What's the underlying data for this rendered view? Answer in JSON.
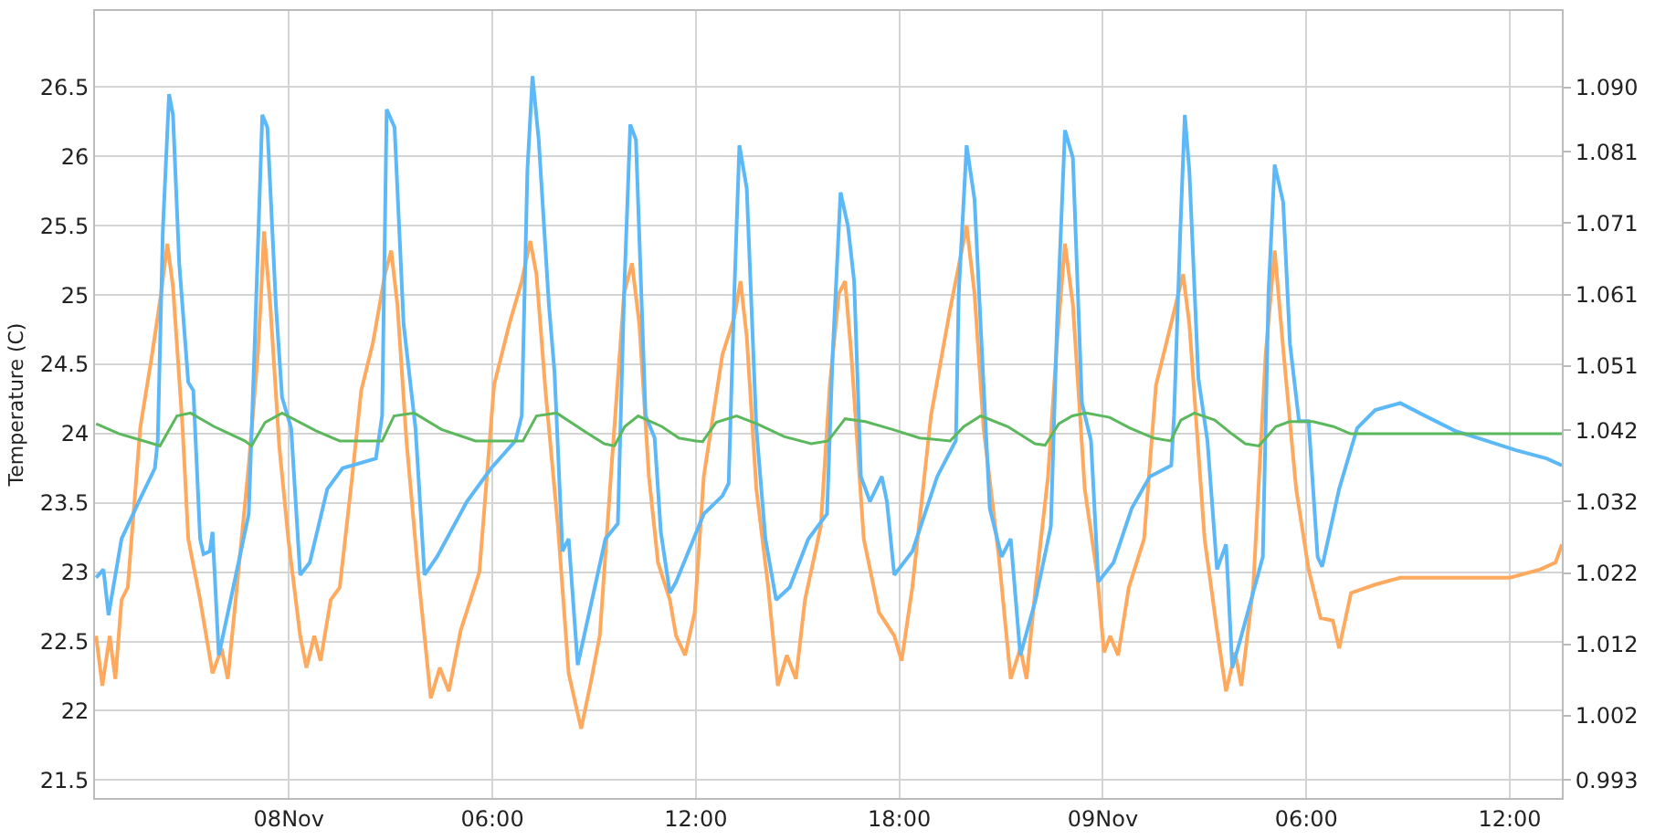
{
  "chart_data": {
    "type": "line",
    "ylabel": "Temperature (C)",
    "xlim": [
      "--11-07T18:17",
      "--11-09T13:32"
    ],
    "xticks": [
      {
        "value": "--11-08T00:00",
        "label": "08Nov"
      },
      {
        "value": "--11-08T06:00",
        "label": "06:00"
      },
      {
        "value": "--11-08T12:00",
        "label": "12:00"
      },
      {
        "value": "--11-08T18:00",
        "label": "18:00"
      },
      {
        "value": "--11-09T00:00",
        "label": "09Nov"
      },
      {
        "value": "--11-09T06:00",
        "label": "06:00"
      },
      {
        "value": "--11-09T12:00",
        "label": "12:00"
      }
    ],
    "ylim": [
      21.37,
      27.05
    ],
    "yticks": [
      21.5,
      22,
      22.5,
      23,
      23.5,
      24,
      24.5,
      25,
      25.5,
      26,
      26.5
    ],
    "y2lim": [
      0.9905,
      1.1007
    ],
    "y2ticks": [
      0.993,
      1.002,
      1.012,
      1.022,
      1.032,
      1.042,
      1.051,
      1.061,
      1.071,
      1.081,
      {
        "value": 1.09,
        "label": "1.090"
      }
    ],
    "grid": true,
    "marker": "none",
    "line_style": "solid",
    "series": [
      {
        "color": "#ffa95e",
        "x": [
          "--11-07T18:19",
          "--11-07T18:30",
          "--11-07T18:43",
          "--11-07T18:53",
          "--11-07T19:04",
          "--11-07T19:15",
          "--11-07T19:37",
          "--11-07T19:58",
          "--11-07T20:14",
          "--11-07T20:25",
          "--11-07T20:35",
          "--11-07T20:52",
          "--11-07T21:02",
          "--11-07T21:23",
          "--11-07T21:45",
          "--11-07T22:01",
          "--11-07T22:12",
          "--11-07T22:28",
          "--11-07T22:49",
          "--11-07T23:05",
          "--11-07T23:11",
          "--11-07T23:16",
          "--11-07T23:27",
          "--11-07T23:43",
          "--11-07T23:59",
          "--11-08T00:20",
          "--11-08T00:31",
          "--11-08T00:45",
          "--11-08T00:56",
          "--11-08T01:14",
          "--11-08T01:30",
          "--11-08T01:52",
          "--11-08T02:08",
          "--11-08T02:29",
          "--11-08T02:50",
          "--11-08T03:01",
          "--11-08T03:12",
          "--11-08T03:28",
          "--11-08T03:49",
          "--11-08T04:11",
          "--11-08T04:27",
          "--11-08T04:43",
          "--11-08T05:04",
          "--11-08T05:37",
          "--11-08T06:03",
          "--11-08T06:30",
          "--11-08T06:52",
          "--11-08T07:07",
          "--11-08T07:18",
          "--11-08T07:34",
          "--11-08T07:56",
          "--11-08T08:15",
          "--11-08T08:37",
          "--11-08T08:53",
          "--11-08T09:10",
          "--11-08T09:31",
          "--11-08T09:53",
          "--11-08T10:07",
          "--11-08T10:20",
          "--11-08T10:37",
          "--11-08T10:53",
          "--11-08T11:14",
          "--11-08T11:25",
          "--11-08T11:41",
          "--11-08T11:58",
          "--11-08T12:14",
          "--11-08T12:47",
          "--11-08T13:08",
          "--11-08T13:19",
          "--11-08T13:30",
          "--11-08T13:47",
          "--11-08T14:08",
          "--11-08T14:25",
          "--11-08T14:41",
          "--11-08T14:57",
          "--11-08T15:13",
          "--11-08T15:41",
          "--11-08T15:57",
          "--11-08T16:13",
          "--11-08T16:24",
          "--11-08T16:35",
          "--11-08T16:57",
          "--11-08T17:24",
          "--11-08T17:51",
          "--11-08T18:04",
          "--11-08T18:23",
          "--11-08T18:56",
          "--11-08T19:29",
          "--11-08T19:59",
          "--11-08T20:13",
          "--11-08T20:29",
          "--11-08T20:56",
          "--11-08T21:17",
          "--11-08T21:34",
          "--11-08T21:45",
          "--11-08T22:01",
          "--11-08T22:23",
          "--11-08T22:39",
          "--11-08T22:53",
          "--11-08T23:07",
          "--11-08T23:28",
          "--11-08T23:50",
          "--11-09T00:02",
          "--11-09T00:13",
          "--11-09T00:27",
          "--11-09T00:46",
          "--11-09T01:13",
          "--11-09T01:34",
          "--11-09T02:06",
          "--11-09T02:22",
          "--11-09T02:33",
          "--11-09T03:00",
          "--11-09T03:22",
          "--11-09T03:38",
          "--11-09T03:54",
          "--11-09T04:05",
          "--11-09T04:26",
          "--11-09T04:48",
          "--11-09T05:04",
          "--11-09T05:20",
          "--11-09T05:42",
          "--11-09T06:04",
          "--11-09T06:25",
          "--11-09T06:47",
          "--11-09T06:58",
          "--11-09T07:19",
          "--11-09T08:02",
          "--11-09T08:46",
          "--11-09T10:12",
          "--11-09T12:00",
          "--11-09T12:54",
          "--11-09T13:21",
          "--11-09T13:32"
        ],
        "values": [
          22.54,
          22.18,
          22.54,
          22.23,
          22.8,
          22.89,
          24.04,
          24.57,
          25.01,
          25.37,
          25.06,
          24.04,
          23.24,
          22.8,
          22.27,
          22.45,
          22.23,
          22.89,
          23.77,
          24.57,
          25.01,
          25.46,
          24.93,
          23.91,
          23.24,
          22.54,
          22.31,
          22.54,
          22.36,
          22.8,
          22.89,
          23.69,
          24.31,
          24.66,
          25.15,
          25.32,
          24.93,
          23.95,
          22.98,
          22.09,
          22.31,
          22.14,
          22.58,
          23.0,
          24.35,
          24.79,
          25.1,
          25.39,
          25.15,
          24.31,
          23.33,
          22.27,
          21.87,
          22.18,
          22.54,
          23.77,
          25.01,
          25.23,
          24.79,
          23.69,
          23.07,
          22.8,
          22.54,
          22.4,
          22.71,
          23.69,
          24.57,
          24.84,
          25.1,
          24.7,
          23.6,
          22.89,
          22.18,
          22.4,
          22.23,
          22.8,
          23.33,
          24.35,
          25.01,
          25.1,
          24.57,
          23.24,
          22.71,
          22.54,
          22.36,
          22.89,
          24.13,
          24.88,
          25.5,
          25.01,
          24.04,
          23.11,
          22.23,
          22.45,
          22.23,
          22.89,
          23.69,
          24.66,
          25.37,
          24.93,
          23.6,
          22.98,
          22.42,
          22.54,
          22.4,
          22.89,
          23.24,
          24.35,
          24.88,
          25.15,
          24.79,
          23.24,
          22.58,
          22.14,
          22.42,
          22.18,
          22.89,
          24.57,
          25.32,
          24.57,
          23.6,
          23.02,
          22.67,
          22.65,
          22.45,
          22.85,
          22.91,
          22.96,
          22.96,
          22.96,
          23.02,
          23.07,
          23.2
        ]
      },
      {
        "color": "#5cb8f7",
        "x": [
          "--11-07T18:19",
          "--11-07T18:32",
          "--11-07T18:41",
          "--11-07T19:04",
          "--11-07T19:37",
          "--11-07T20:03",
          "--11-07T20:08",
          "--11-07T20:17",
          "--11-07T20:28",
          "--11-07T20:35",
          "--11-07T20:46",
          "--11-07T21:02",
          "--11-07T21:11",
          "--11-07T21:23",
          "--11-07T21:29",
          "--11-07T21:40",
          "--11-07T21:45",
          "--11-07T21:56",
          "--11-07T22:17",
          "--11-07T22:49",
          "--11-07T23:00",
          "--11-07T23:13",
          "--11-07T23:22",
          "--11-07T23:37",
          "--11-07T23:48",
          "--11-08T00:04",
          "--11-08T00:20",
          "--11-08T00:37",
          "--11-08T01:08",
          "--11-08T01:35",
          "--11-08T02:34",
          "--11-08T02:45",
          "--11-08T02:53",
          "--11-08T03:07",
          "--11-08T03:23",
          "--11-08T03:44",
          "--11-08T04:00",
          "--11-08T04:22",
          "--11-08T05:15",
          "--11-08T05:58",
          "--11-08T06:41",
          "--11-08T06:52",
          "--11-08T07:02",
          "--11-08T07:11",
          "--11-08T07:22",
          "--11-08T07:40",
          "--11-08T07:50",
          "--11-08T08:04",
          "--11-08T08:15",
          "--11-08T08:31",
          "--11-08T09:20",
          "--11-08T09:42",
          "--11-08T09:53",
          "--11-08T10:04",
          "--11-08T10:14",
          "--11-08T10:31",
          "--11-08T10:47",
          "--11-08T10:58",
          "--11-08T11:14",
          "--11-08T11:25",
          "--11-08T12:14",
          "--11-08T12:47",
          "--11-08T12:58",
          "--11-08T13:08",
          "--11-08T13:17",
          "--11-08T13:30",
          "--11-08T13:47",
          "--11-08T14:03",
          "--11-08T14:22",
          "--11-08T14:46",
          "--11-08T15:19",
          "--11-08T15:52",
          "--11-08T16:02",
          "--11-08T16:16",
          "--11-08T16:29",
          "--11-08T16:40",
          "--11-08T16:52",
          "--11-08T17:08",
          "--11-08T17:29",
          "--11-08T17:38",
          "--11-08T17:51",
          "--11-08T18:23",
          "--11-08T19:07",
          "--11-08T19:40",
          "--11-08T19:45",
          "--11-08T19:59",
          "--11-08T20:13",
          "--11-08T20:29",
          "--11-08T20:40",
          "--11-08T21:01",
          "--11-08T21:17",
          "--11-08T21:34",
          "--11-08T22:01",
          "--11-08T22:28",
          "--11-08T22:39",
          "--11-08T22:53",
          "--11-08T23:07",
          "--11-08T23:23",
          "--11-08T23:39",
          "--11-08T23:52",
          "--11-09T00:19",
          "--11-09T00:51",
          "--11-09T01:23",
          "--11-09T02:01",
          "--11-09T02:06",
          "--11-09T02:17",
          "--11-09T02:25",
          "--11-09T02:33",
          "--11-09T02:49",
          "--11-09T03:05",
          "--11-09T03:22",
          "--11-09T03:38",
          "--11-09T03:49",
          "--11-09T04:05",
          "--11-09T04:43",
          "--11-09T04:53",
          "--11-09T05:04",
          "--11-09T05:19",
          "--11-09T05:31",
          "--11-09T05:47",
          "--11-09T06:04",
          "--11-09T06:20",
          "--11-09T06:28",
          "--11-09T06:58",
          "--11-09T07:30",
          "--11-09T08:02",
          "--11-09T08:46",
          "--11-09T09:29",
          "--11-09T10:23",
          "--11-09T11:17",
          "--11-09T12:11",
          "--11-09T13:05",
          "--11-09T13:32"
        ],
        "values": [
          22.96,
          23.02,
          22.69,
          23.24,
          23.53,
          23.75,
          23.95,
          25.46,
          26.45,
          26.3,
          25.23,
          24.37,
          24.31,
          23.24,
          23.13,
          23.15,
          23.29,
          22.4,
          22.8,
          23.42,
          24.7,
          26.3,
          26.21,
          24.93,
          24.26,
          24.04,
          22.98,
          23.07,
          23.6,
          23.75,
          23.82,
          24.13,
          26.34,
          26.21,
          24.79,
          24.04,
          22.98,
          23.11,
          23.51,
          23.75,
          23.95,
          24.13,
          25.9,
          26.58,
          26.12,
          24.93,
          24.44,
          23.15,
          23.24,
          22.33,
          23.24,
          23.35,
          25.01,
          26.23,
          26.12,
          24.13,
          23.97,
          23.29,
          22.85,
          22.93,
          23.42,
          23.55,
          23.64,
          25.01,
          26.08,
          25.77,
          24.04,
          23.24,
          22.8,
          22.89,
          23.24,
          23.42,
          24.57,
          25.74,
          25.5,
          25.1,
          23.69,
          23.51,
          23.69,
          23.51,
          22.98,
          23.15,
          23.69,
          23.95,
          25.01,
          26.08,
          25.69,
          24.35,
          23.46,
          23.11,
          23.24,
          22.4,
          22.8,
          23.33,
          24.79,
          26.19,
          25.99,
          24.22,
          23.95,
          22.93,
          23.07,
          23.46,
          23.69,
          23.77,
          24.13,
          25.46,
          26.3,
          25.9,
          24.4,
          23.95,
          23.02,
          23.2,
          22.31,
          22.54,
          23.11,
          25.01,
          25.94,
          25.67,
          24.65,
          24.09,
          24.09,
          23.11,
          23.04,
          23.6,
          24.04,
          24.17,
          24.22,
          24.13,
          24.02,
          23.95,
          23.88,
          23.82,
          23.77
        ]
      },
      {
        "color": "#5cb85c",
        "axis": "y2",
        "x": [
          "--11-07T18:19",
          "--11-07T19:00",
          "--11-07T20:00",
          "--11-07T20:12",
          "--11-07T20:42",
          "--11-07T21:06",
          "--11-07T21:48",
          "--11-07T22:42",
          "--11-07T22:54",
          "--11-07T23:18",
          "--11-07T23:48",
          "--11-08T00:48",
          "--11-08T01:30",
          "--11-08T02:45",
          "--11-08T03:06",
          "--11-08T03:42",
          "--11-08T04:30",
          "--11-08T05:30",
          "--11-08T06:54",
          "--11-08T07:18",
          "--11-08T07:54",
          "--11-08T08:42",
          "--11-08T09:18",
          "--11-08T09:36",
          "--11-08T09:54",
          "--11-08T10:18",
          "--11-08T11:00",
          "--11-08T11:30",
          "--11-08T12:00",
          "--11-08T12:12",
          "--11-08T12:36",
          "--11-08T13:12",
          "--11-08T13:48",
          "--11-08T14:36",
          "--11-08T15:24",
          "--11-08T15:54",
          "--11-08T16:24",
          "--11-08T17:00",
          "--11-08T17:48",
          "--11-08T18:36",
          "--11-08T19:30",
          "--11-08T19:54",
          "--11-08T20:24",
          "--11-08T21:12",
          "--11-08T22:00",
          "--11-08T22:18",
          "--11-08T22:42",
          "--11-08T23:06",
          "--11-08T23:30",
          "--11-09T00:12",
          "--11-09T00:48",
          "--11-09T01:30",
          "--11-09T02:00",
          "--11-09T02:18",
          "--11-09T02:42",
          "--11-09T03:18",
          "--11-09T03:48",
          "--11-09T04:12",
          "--11-09T04:36",
          "--11-09T05:06",
          "--11-09T05:30",
          "--11-09T06:12",
          "--11-09T06:48",
          "--11-09T07:18",
          "--11-09T08:00",
          "--11-09T13:32"
        ],
        "values": [
          1.0429,
          1.0415,
          1.0401,
          1.0398,
          1.044,
          1.0444,
          1.0425,
          1.0405,
          1.0398,
          1.0431,
          1.0444,
          1.0419,
          1.0405,
          1.0405,
          1.044,
          1.0444,
          1.0421,
          1.0405,
          1.0405,
          1.044,
          1.0444,
          1.0419,
          1.0401,
          1.0398,
          1.0425,
          1.044,
          1.0425,
          1.0409,
          1.0405,
          1.0404,
          1.0431,
          1.044,
          1.0429,
          1.0411,
          1.0401,
          1.0405,
          1.0436,
          1.0432,
          1.0421,
          1.0409,
          1.0405,
          1.0425,
          1.044,
          1.0425,
          1.0401,
          1.0399,
          1.0429,
          1.044,
          1.0444,
          1.0438,
          1.0423,
          1.0409,
          1.0405,
          1.0434,
          1.0444,
          1.0434,
          1.0415,
          1.0401,
          1.0398,
          1.0425,
          1.0432,
          1.0432,
          1.0425,
          1.0415,
          1.0415,
          1.0415
        ]
      }
    ]
  }
}
